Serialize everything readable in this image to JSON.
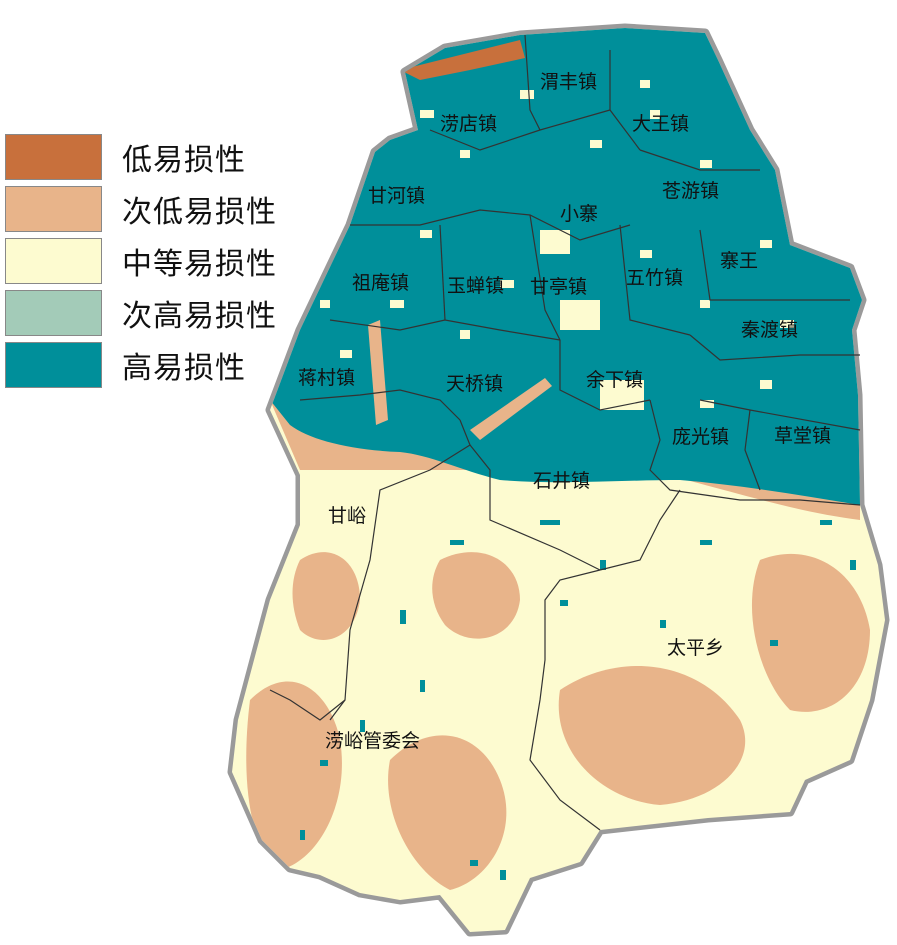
{
  "legend": {
    "items": [
      {
        "label": "低易损性",
        "color": "#c8703c"
      },
      {
        "label": "次低易损性",
        "color": "#e8b48a"
      },
      {
        "label": "中等易损性",
        "color": "#fdfbd0"
      },
      {
        "label": "次高易损性",
        "color": "#a3cbb8"
      },
      {
        "label": "高易损性",
        "color": "#008f9a"
      }
    ]
  },
  "places": {
    "weifeng": "渭丰镇",
    "laodian": "涝店镇",
    "dawang": "大王镇",
    "ganhe": "甘河镇",
    "cangyou": "苍游镇",
    "xiaozhai": "小寨",
    "hanwang": "寨王",
    "zuan": "祖庵镇",
    "yuchan": "玉蝉镇",
    "ganting": "甘亭镇",
    "wuzhu": "五竹镇",
    "qindu": "秦渡镇",
    "jiangcun": "蒋村镇",
    "tianqiao": "天桥镇",
    "yuxia": "余下镇",
    "pangguang": "庞光镇",
    "caotang": "草堂镇",
    "shijing": "石井镇",
    "ganyu": "甘峪",
    "taiping": "太平乡",
    "laoyu": "涝峪管委会"
  }
}
